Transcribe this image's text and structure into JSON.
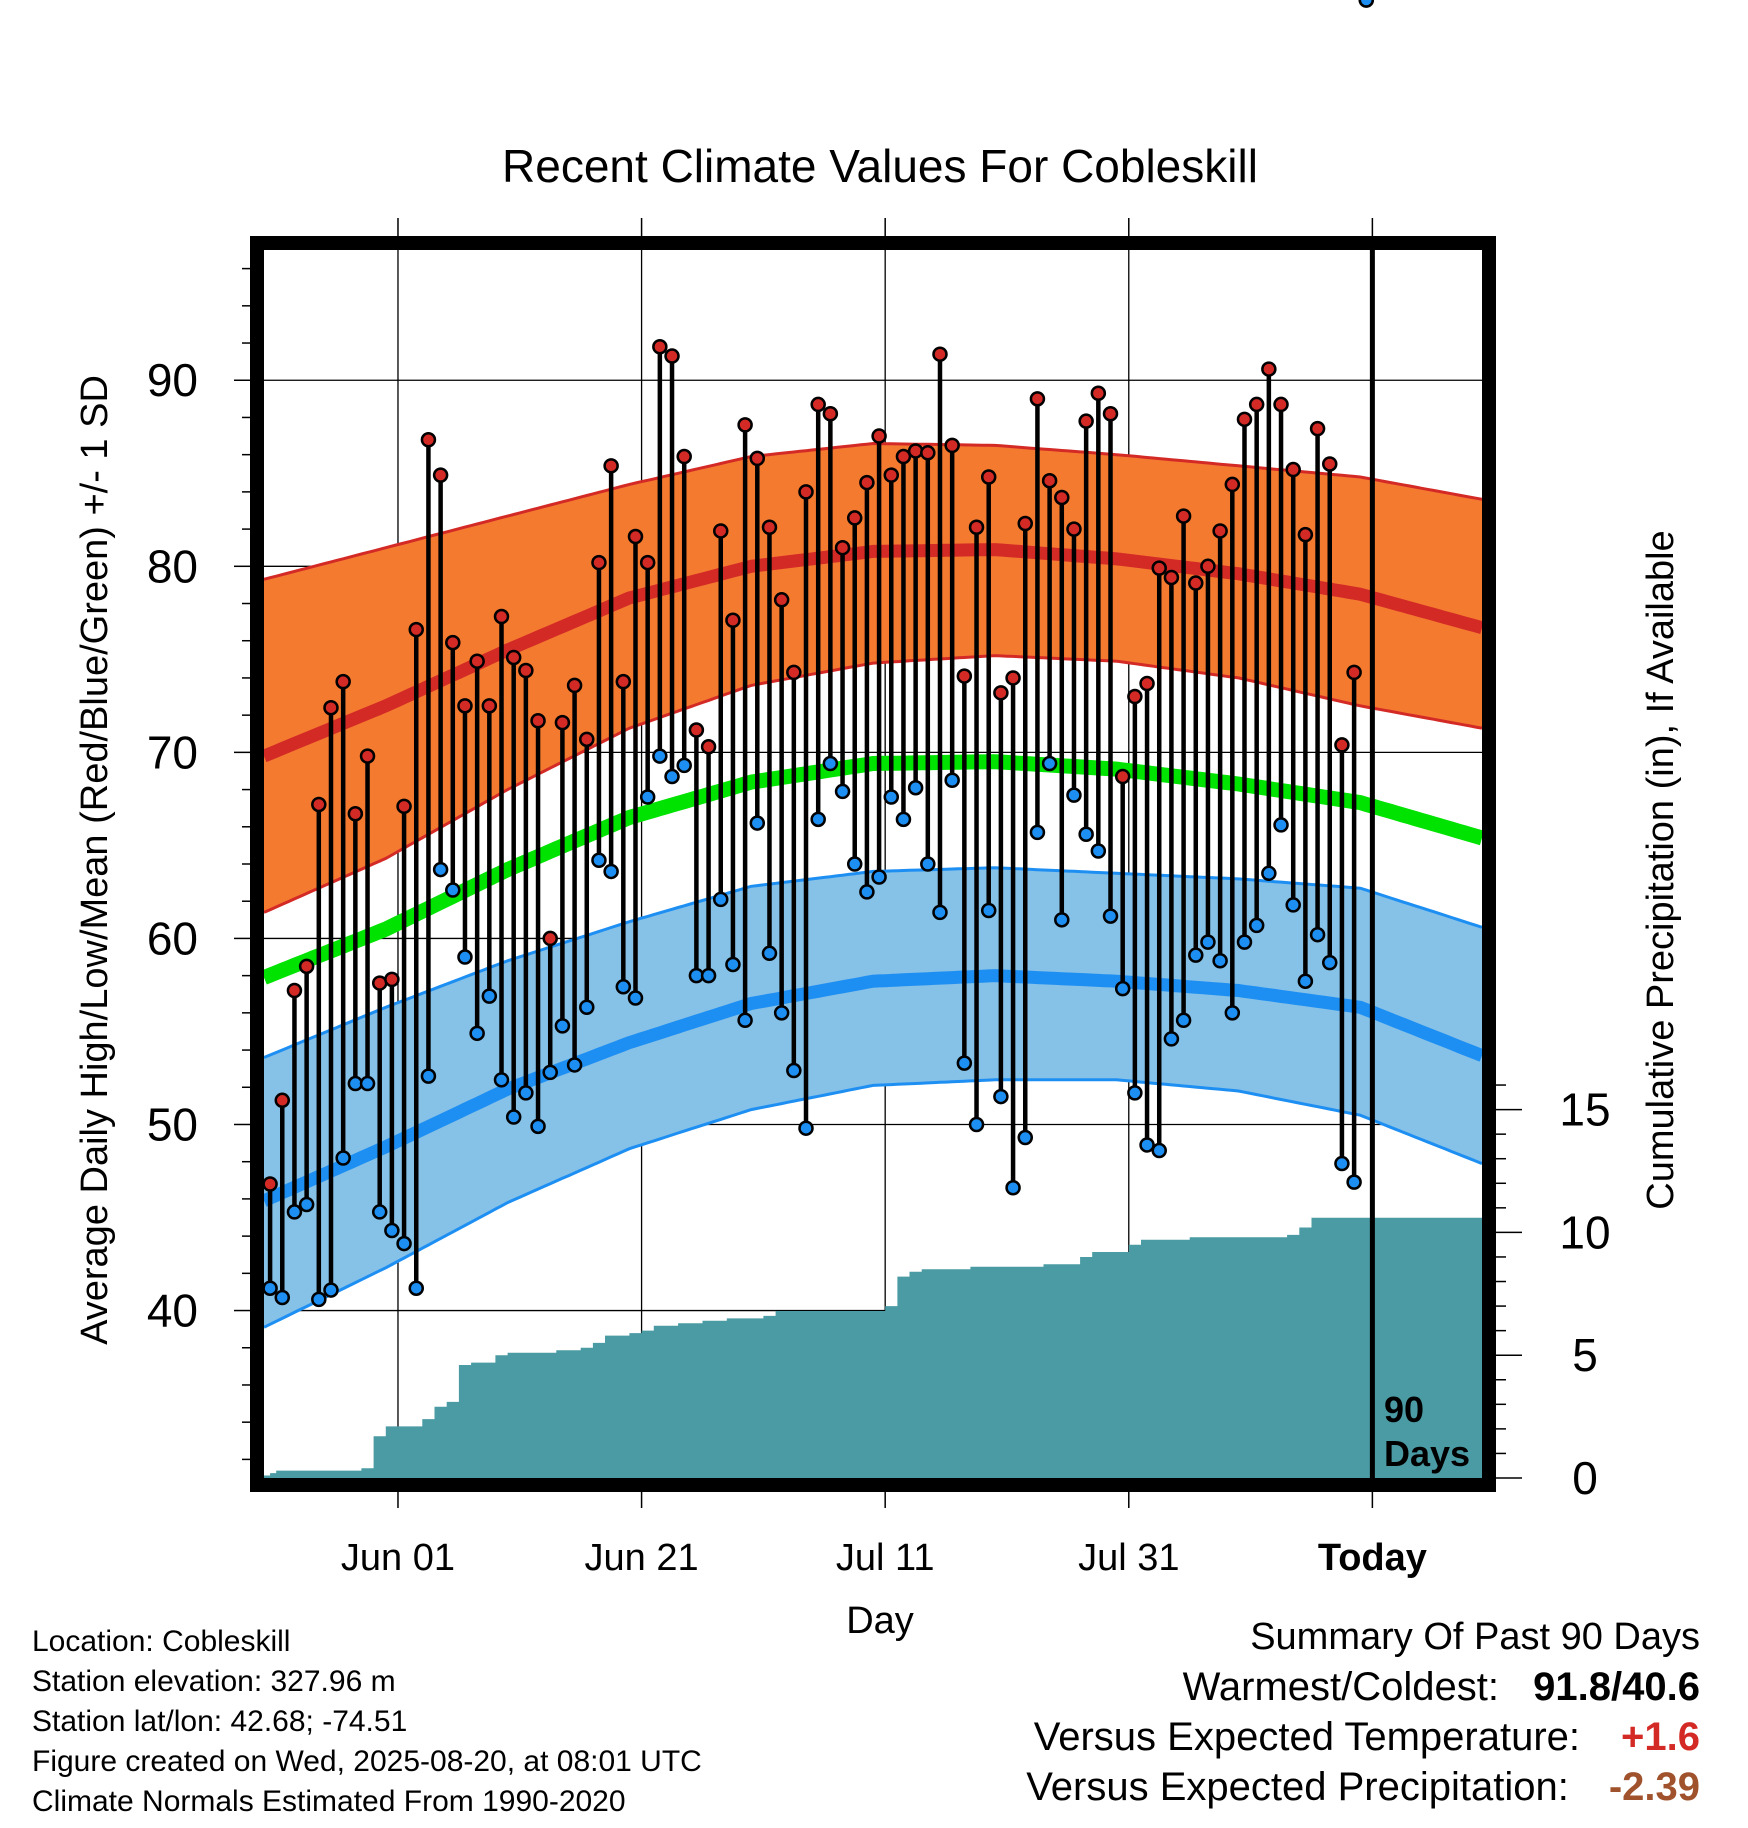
{
  "chart_data": {
    "type": "line",
    "title": "Recent Climate Values For Cobleskill",
    "xlabel": "Day",
    "ylabel": "Average Daily High/Low/Mean (Red/Blue/Green) +/- 1 SD",
    "ylabel_right": "Cumulative Precipitation (in), If Available",
    "x_tick_labels": [
      "Jun 01",
      "Jun 21",
      "Jul 11",
      "Jul 31",
      "Today"
    ],
    "x_tick_days": [
      11,
      31,
      51,
      71,
      91
    ],
    "y_ticks": [
      40,
      50,
      60,
      70,
      80,
      90
    ],
    "y_ticks_right": [
      0,
      5,
      10,
      15
    ],
    "ylim": [
      31,
      97
    ],
    "ylim_right": [
      0,
      50
    ],
    "day_range": [
      0,
      100
    ],
    "today_day": 91,
    "today_annotation": [
      "90",
      "Days"
    ],
    "grid": true,
    "colors": {
      "high_band": "#f47a30",
      "high_line": "#d42a26",
      "low_band": "#86c1e8",
      "low_line": "#1e8ff2",
      "mean_line": "#00e200",
      "precip": "#4a9ba4",
      "high_dot": "#d42a26",
      "low_dot": "#1e8ff2"
    },
    "normal_high": {
      "day": [
        0,
        10,
        20,
        30,
        40,
        50,
        60,
        70,
        80,
        90,
        100
      ],
      "mean": [
        69.8,
        72.5,
        75.5,
        78.3,
        80.0,
        80.8,
        80.9,
        80.4,
        79.6,
        78.5,
        76.7
      ],
      "upper": [
        79.3,
        81.0,
        82.7,
        84.4,
        85.9,
        86.6,
        86.5,
        86.0,
        85.4,
        84.8,
        83.6
      ],
      "lower": [
        61.4,
        64.3,
        68.0,
        71.3,
        73.6,
        74.8,
        75.2,
        74.9,
        74.0,
        72.5,
        71.3
      ]
    },
    "normal_low": {
      "day": [
        0,
        10,
        20,
        30,
        40,
        50,
        60,
        70,
        80,
        90,
        100
      ],
      "mean": [
        45.9,
        48.8,
        51.9,
        54.4,
        56.5,
        57.7,
        58.0,
        57.7,
        57.2,
        56.3,
        53.7
      ],
      "upper": [
        53.6,
        56.3,
        58.8,
        60.9,
        62.8,
        63.6,
        63.8,
        63.5,
        63.2,
        62.7,
        60.6
      ],
      "lower": [
        39.1,
        42.3,
        45.8,
        48.7,
        50.8,
        52.1,
        52.4,
        52.4,
        51.8,
        50.5,
        47.9
      ]
    },
    "normal_mean": {
      "day": [
        0,
        10,
        20,
        30,
        40,
        50,
        60,
        70,
        80,
        90,
        100
      ],
      "values": [
        57.9,
        60.5,
        63.7,
        66.5,
        68.4,
        69.4,
        69.5,
        69.1,
        68.3,
        67.3,
        65.4
      ]
    },
    "observed": {
      "day": [
        0,
        1,
        2,
        3,
        4,
        5,
        6,
        7,
        8,
        9,
        10,
        11,
        12,
        13,
        14,
        15,
        16,
        17,
        18,
        19,
        20,
        21,
        22,
        23,
        24,
        25,
        26,
        27,
        28,
        29,
        30,
        31,
        32,
        33,
        34,
        35,
        36,
        37,
        38,
        39,
        40,
        41,
        42,
        43,
        44,
        45,
        46,
        47,
        48,
        49,
        50,
        51,
        52,
        53,
        54,
        55,
        56,
        57,
        58,
        59,
        60,
        61,
        62,
        63,
        64,
        65,
        66,
        67,
        68,
        69,
        70,
        71,
        72,
        73,
        74,
        75,
        76,
        77,
        78,
        79,
        80,
        81,
        82,
        83,
        84,
        85,
        86,
        87,
        88,
        89,
        90
      ],
      "high": [
        46.8,
        51.3,
        57.2,
        58.5,
        67.2,
        72.4,
        73.8,
        66.7,
        69.8,
        57.6,
        57.8,
        67.1,
        76.6,
        86.8,
        84.9,
        75.9,
        72.5,
        74.9,
        72.5,
        77.3,
        75.1,
        74.4,
        71.7,
        60.0,
        71.6,
        73.6,
        70.7,
        80.2,
        85.4,
        73.8,
        81.6,
        80.2,
        91.8,
        91.3,
        85.9,
        71.2,
        70.3,
        81.9,
        77.1,
        87.6,
        85.8,
        82.1,
        78.2,
        74.3,
        84.0,
        88.7,
        88.2,
        81.0,
        82.6,
        84.5,
        87.0,
        84.9,
        85.9,
        86.2,
        86.1,
        91.4,
        86.5,
        74.1,
        82.1,
        84.8,
        73.2,
        74.0,
        82.3,
        89.0,
        84.6,
        83.7,
        82.0,
        87.8,
        89.3,
        88.2,
        68.7,
        73.0,
        73.7,
        79.9,
        79.4,
        82.7,
        79.1,
        80.0,
        81.9,
        84.4,
        87.9,
        88.7,
        90.6,
        88.7,
        85.2,
        81.7,
        87.4,
        85.5,
        70.4,
        74.3
      ],
      "low": [
        41.2,
        40.7,
        45.3,
        45.7,
        40.6,
        41.1,
        48.2,
        52.2,
        52.2,
        45.3,
        44.3,
        43.6,
        41.2,
        52.6,
        63.7,
        62.6,
        59.0,
        54.9,
        56.9,
        52.4,
        50.4,
        51.7,
        49.9,
        52.8,
        55.3,
        53.2,
        56.3,
        64.2,
        63.6,
        57.4,
        56.8,
        67.6,
        69.8,
        68.7,
        69.3,
        58.0,
        58.0,
        62.1,
        58.6,
        55.6,
        66.2,
        59.2,
        56.0,
        52.9,
        49.8,
        66.4,
        69.4,
        67.9,
        64.0,
        62.5,
        63.3,
        67.6,
        66.4,
        68.1,
        64.0,
        61.4,
        68.5,
        53.3,
        50.0,
        61.5,
        51.5,
        46.6,
        49.3,
        65.7,
        69.4,
        61.0,
        67.7,
        65.6,
        64.7,
        61.2,
        57.3,
        51.7,
        48.9,
        48.6,
        54.6,
        55.6,
        59.1,
        59.8,
        58.8,
        56.0,
        59.8,
        60.7,
        63.5,
        66.1,
        61.8,
        57.7,
        60.2,
        58.7,
        47.9,
        46.9
      ]
    },
    "precip_cumulative": {
      "day": [
        0,
        0.5,
        1,
        8,
        9,
        10,
        13,
        14,
        15,
        16,
        17,
        19,
        20,
        22,
        24,
        26,
        27,
        28,
        30,
        31,
        32,
        34,
        36,
        38,
        40,
        41,
        42,
        44,
        46,
        48,
        50,
        51,
        52,
        53,
        54,
        56,
        58,
        60,
        62,
        64,
        66,
        67,
        68,
        70,
        71,
        72,
        74,
        76,
        78,
        80,
        82,
        84,
        85,
        86,
        88,
        90,
        100
      ],
      "values": [
        0.1,
        0.2,
        0.3,
        0.4,
        1.7,
        2.1,
        2.4,
        2.9,
        3.1,
        4.6,
        4.7,
        5.0,
        5.1,
        5.1,
        5.2,
        5.3,
        5.5,
        5.8,
        5.9,
        6.0,
        6.2,
        6.3,
        6.4,
        6.5,
        6.5,
        6.6,
        6.8,
        6.8,
        6.8,
        6.8,
        6.8,
        7.0,
        8.2,
        8.4,
        8.5,
        8.5,
        8.6,
        8.6,
        8.6,
        8.7,
        8.7,
        9.0,
        9.2,
        9.2,
        9.5,
        9.7,
        9.7,
        9.8,
        9.8,
        9.8,
        9.8,
        9.9,
        10.2,
        10.6,
        10.6,
        10.6,
        10.6
      ]
    }
  },
  "info": {
    "location": "Location: Cobleskill",
    "elevation": "Station elevation: 327.96 m",
    "latlon": "Station lat/lon: 42.68; -74.51",
    "created": "Figure created on Wed, 2025-08-20, at 08:01 UTC",
    "normals": "Climate Normals Estimated From 1990-2020"
  },
  "summary": {
    "title": "Summary Of Past 90 Days",
    "warm_cold_label": "Warmest/Coldest:",
    "warm_cold_value": "91.8/40.6",
    "temp_label": "Versus Expected Temperature:",
    "temp_value": "+1.6",
    "temp_color": "#d42a26",
    "precip_label": "Versus Expected Precipitation:",
    "precip_value": "-2.39",
    "precip_color": "#a0522d"
  }
}
